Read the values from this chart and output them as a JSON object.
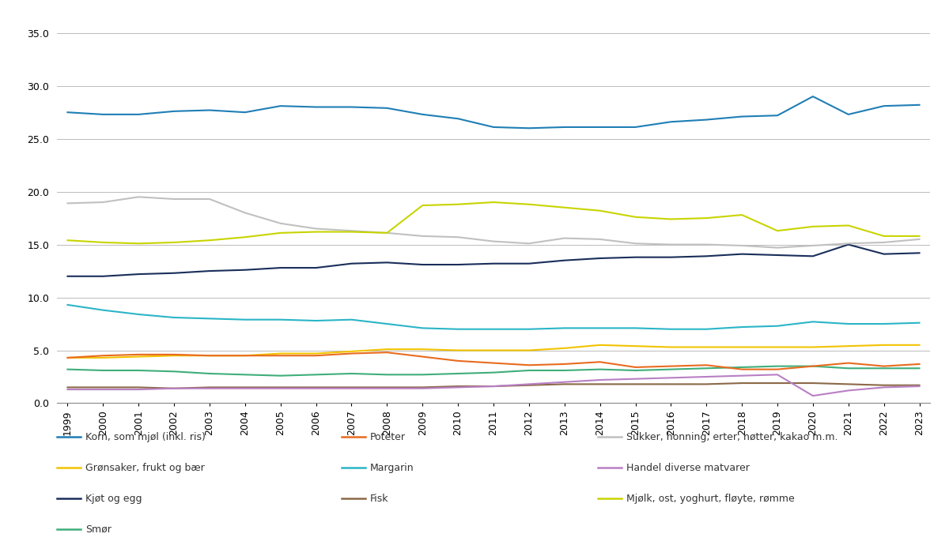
{
  "years": [
    1999,
    2000,
    2001,
    2002,
    2003,
    2004,
    2005,
    2006,
    2007,
    2008,
    2009,
    2010,
    2011,
    2012,
    2013,
    2014,
    2015,
    2016,
    2017,
    2018,
    2019,
    2020,
    2021,
    2022,
    2023
  ],
  "series_order": [
    "Korn, som mjøl (inkl. ris)",
    "Grønsaker, frukt og bær",
    "Kjøt og egg",
    "Smør",
    "Poteter",
    "Margarin",
    "Fisk",
    "Sukker, honning, erter, nøtter, kakao m.m.",
    "Handel diverse matvarer",
    "Mjølk, ost, yoghurt, fløyte, rømme"
  ],
  "series": {
    "Korn, som mjøl (inkl. ris)": {
      "color": "#1f7eb5",
      "data": [
        27.5,
        27.3,
        27.3,
        27.6,
        27.7,
        27.5,
        28.1,
        28.0,
        28.0,
        27.9,
        27.3,
        26.9,
        26.1,
        26.0,
        26.1,
        26.1,
        26.1,
        26.6,
        26.8,
        27.1,
        27.2,
        29.0,
        27.3,
        28.1,
        28.2
      ]
    },
    "Grønsaker, frukt og bær": {
      "color": "#f2c300",
      "data": [
        4.3,
        4.3,
        4.4,
        4.5,
        4.5,
        4.5,
        4.7,
        4.7,
        4.9,
        5.1,
        5.1,
        5.0,
        5.0,
        5.0,
        5.2,
        5.5,
        5.4,
        5.3,
        5.3,
        5.3,
        5.3,
        5.3,
        5.4,
        5.5,
        5.5
      ]
    },
    "Kjøt og egg": {
      "color": "#1a2e5a",
      "data": [
        12.0,
        12.0,
        12.2,
        12.3,
        12.5,
        12.6,
        12.8,
        12.8,
        13.2,
        13.3,
        13.1,
        13.1,
        13.2,
        13.2,
        13.5,
        13.7,
        13.8,
        13.8,
        13.9,
        14.1,
        14.0,
        13.9,
        15.0,
        14.1,
        14.2
      ]
    },
    "Smør": {
      "color": "#3fae7a",
      "data": [
        3.2,
        3.1,
        3.1,
        3.0,
        2.8,
        2.7,
        2.6,
        2.7,
        2.8,
        2.7,
        2.7,
        2.8,
        2.9,
        3.1,
        3.1,
        3.2,
        3.1,
        3.2,
        3.3,
        3.4,
        3.5,
        3.5,
        3.3,
        3.3,
        3.3
      ]
    },
    "Poteter": {
      "color": "#e86b1f",
      "data": [
        4.3,
        4.5,
        4.6,
        4.6,
        4.5,
        4.5,
        4.5,
        4.5,
        4.7,
        4.8,
        4.4,
        4.0,
        3.8,
        3.6,
        3.7,
        3.9,
        3.4,
        3.5,
        3.6,
        3.2,
        3.2,
        3.5,
        3.8,
        3.5,
        3.7
      ]
    },
    "Margarin": {
      "color": "#2ab5c7",
      "data": [
        9.3,
        8.8,
        8.4,
        8.1,
        8.0,
        7.9,
        7.9,
        7.8,
        7.9,
        7.5,
        7.1,
        7.0,
        7.0,
        7.0,
        7.1,
        7.1,
        7.1,
        7.0,
        7.0,
        7.2,
        7.3,
        7.7,
        7.5,
        7.5,
        7.6
      ]
    },
    "Fisk": {
      "color": "#8b6947",
      "data": [
        1.5,
        1.5,
        1.5,
        1.4,
        1.5,
        1.5,
        1.5,
        1.5,
        1.5,
        1.5,
        1.5,
        1.6,
        1.6,
        1.7,
        1.8,
        1.8,
        1.8,
        1.8,
        1.8,
        1.9,
        1.9,
        1.9,
        1.8,
        1.7,
        1.7
      ]
    },
    "Sukker, honning, erter, nøtter, kakao m.m.": {
      "color": "#c0c0c0",
      "data": [
        18.9,
        19.0,
        19.5,
        19.3,
        19.3,
        18.0,
        17.0,
        16.5,
        16.3,
        16.1,
        15.8,
        15.7,
        15.3,
        15.1,
        15.6,
        15.5,
        15.1,
        15.0,
        15.0,
        14.9,
        14.7,
        14.9,
        15.1,
        15.2,
        15.5
      ]
    },
    "Handel diverse matvarer": {
      "color": "#b87fc4",
      "data": [
        1.3,
        1.3,
        1.3,
        1.4,
        1.4,
        1.4,
        1.4,
        1.4,
        1.4,
        1.4,
        1.4,
        1.5,
        1.6,
        1.8,
        2.0,
        2.2,
        2.3,
        2.4,
        2.5,
        2.6,
        2.7,
        0.7,
        1.2,
        1.5,
        1.6
      ]
    },
    "Mjølk, ost, yoghurt, fløyte, rømme": {
      "color": "#c8d400",
      "data": [
        15.4,
        15.2,
        15.1,
        15.2,
        15.4,
        15.7,
        16.1,
        16.2,
        16.2,
        16.1,
        18.7,
        18.8,
        19.0,
        18.8,
        18.5,
        18.2,
        17.6,
        17.4,
        17.5,
        17.8,
        16.3,
        16.7,
        16.8,
        15.8,
        15.8
      ]
    }
  },
  "legend_col1": [
    "Korn, som mjøl (inkl. ris)",
    "Grønsaker, frukt og bær",
    "Kjøt og egg",
    "Smør"
  ],
  "legend_col2": [
    "Poteter",
    "Margarin",
    "Fisk"
  ],
  "legend_col3": [
    "Sukker, honning, erter, nøtter, kakao m.m.",
    "Handel diverse matvarer",
    "Mjølk, ost, yoghurt, fløyte, rømme"
  ],
  "ylim": [
    0,
    36
  ],
  "yticks": [
    0.0,
    5.0,
    10.0,
    15.0,
    20.0,
    25.0,
    30.0,
    35.0
  ],
  "background_color": "#ffffff",
  "grid_color": "#bbbbbb"
}
